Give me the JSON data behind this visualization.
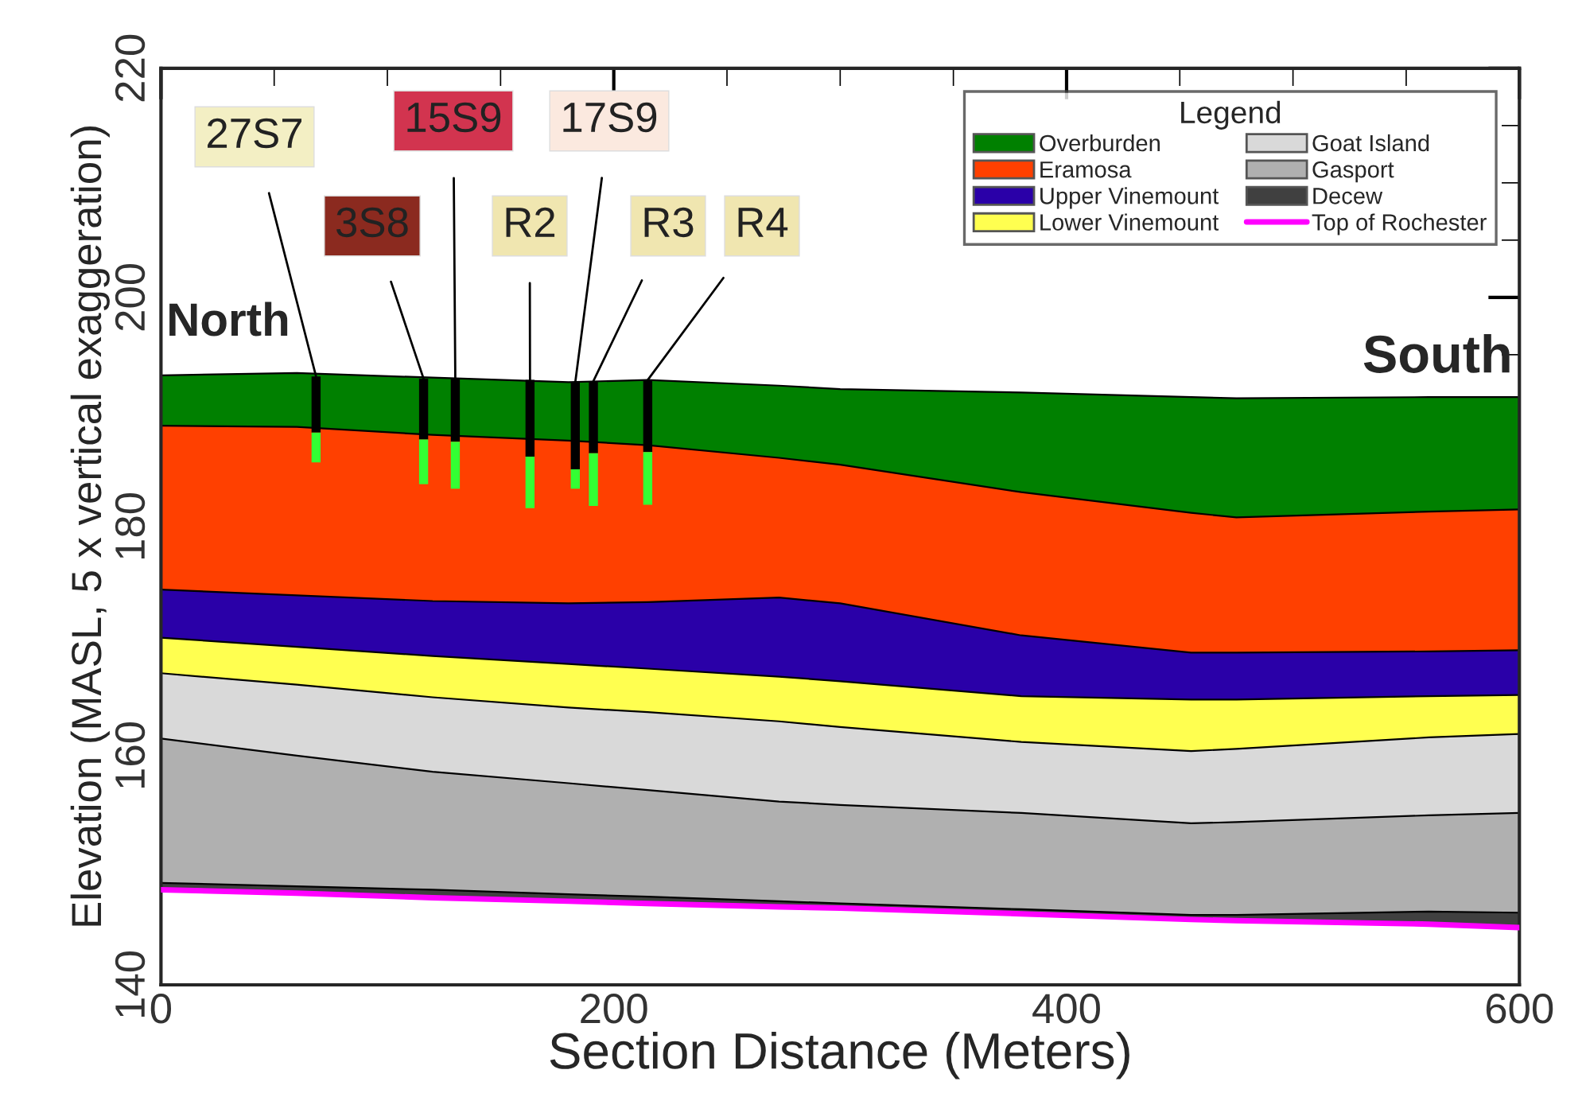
{
  "chart_data": {
    "type": "area",
    "xlabel": "Section Distance (Meters)",
    "ylabel": "Elevation (MASL, 5 x vertical exaggeration)",
    "legend_title": "Legend",
    "legend": "top right",
    "grid": false,
    "x": [
      0,
      60,
      120,
      180,
      215,
      273,
      300,
      380,
      455,
      475,
      560,
      600
    ],
    "xlim": [
      0,
      600
    ],
    "xticks": [
      0,
      200,
      400,
      600
    ],
    "ylim": [
      140,
      220
    ],
    "yticks": [
      140,
      160,
      180,
      200,
      220
    ],
    "series": [
      {
        "name": "Overburden",
        "color": "#008000",
        "values": [
          193.2,
          193.4,
          193.0,
          192.6,
          192.8,
          192.3,
          192.0,
          191.7,
          191.3,
          191.2,
          191.3,
          191.3
        ]
      },
      {
        "name": "Eramosa",
        "color": "#ff4000",
        "values": [
          188.8,
          188.7,
          188.0,
          187.5,
          187.1,
          186.0,
          185.4,
          183.0,
          181.2,
          180.8,
          181.3,
          181.5
        ]
      },
      {
        "name": "Upper Vinemount",
        "color": "#2a00a8",
        "values": [
          174.5,
          174.0,
          173.5,
          173.3,
          173.4,
          173.8,
          173.3,
          170.5,
          169.0,
          169.0,
          169.1,
          169.2
        ]
      },
      {
        "name": "Lower Vinemount",
        "color": "#ffff50",
        "values": [
          170.3,
          169.5,
          168.7,
          168.0,
          167.6,
          166.9,
          166.5,
          165.2,
          164.9,
          164.9,
          165.2,
          165.3
        ]
      },
      {
        "name": "Goat Island",
        "color": "#d9d9d9",
        "values": [
          167.2,
          166.2,
          165.1,
          164.2,
          163.8,
          163.0,
          162.5,
          161.2,
          160.4,
          160.6,
          161.6,
          161.9
        ]
      },
      {
        "name": "Gasport",
        "color": "#b0b0b0",
        "values": [
          161.5,
          160.0,
          158.6,
          157.6,
          157.0,
          156.0,
          155.7,
          155.0,
          154.1,
          154.2,
          154.8,
          155.0
        ]
      },
      {
        "name": "Decew",
        "color": "#404040",
        "values": [
          148.9,
          148.6,
          148.3,
          147.9,
          147.7,
          147.3,
          147.1,
          146.6,
          146.1,
          146.1,
          146.4,
          146.3
        ]
      },
      {
        "name": "Top of Rochester",
        "type": "line",
        "color": "#ff00ff",
        "values": [
          148.3,
          148.0,
          147.6,
          147.3,
          147.1,
          146.8,
          146.7,
          146.2,
          145.7,
          145.6,
          145.3,
          145.0
        ]
      },
      {
        "type": "bar",
        "color": "#000000",
        "x": [
          68.5,
          116,
          130,
          163,
          183,
          191,
          215
        ],
        "base": [
          188.2,
          187.6,
          187.4,
          186.1,
          185.0,
          186.4,
          186.5
        ],
        "values": [
          4.9,
          5.3,
          5.5,
          6.7,
          7.6,
          6.3,
          6.3
        ]
      },
      {
        "type": "bar",
        "color": "#33ff33",
        "x": [
          68.5,
          116,
          130,
          163,
          183,
          191,
          215
        ],
        "base": [
          185.6,
          183.7,
          183.3,
          181.6,
          183.3,
          181.8,
          181.9
        ],
        "values": [
          2.6,
          3.9,
          4.1,
          4.5,
          1.7,
          4.6,
          4.6
        ]
      }
    ],
    "annotations": [
      "North",
      "South",
      {
        "text": "27S7",
        "x": 68.5,
        "y": 193.1
      },
      {
        "text": "3S8",
        "x": 116,
        "y": 192.9
      },
      {
        "text": "15S9",
        "x": 130,
        "y": 192.9
      },
      {
        "text": "R2",
        "x": 163,
        "y": 192.8
      },
      {
        "text": "17S9",
        "x": 183,
        "y": 192.6
      },
      {
        "text": "R3",
        "x": 191,
        "y": 192.7
      },
      {
        "text": "R4",
        "x": 215,
        "y": 192.8
      }
    ]
  }
}
